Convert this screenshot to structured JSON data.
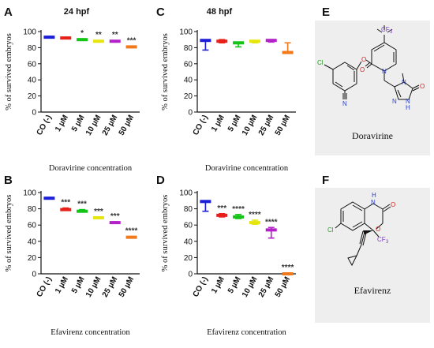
{
  "panels": [
    {
      "letter": "A",
      "title": "24 hpf"
    },
    {
      "letter": "B",
      "title": ""
    },
    {
      "letter": "C",
      "title": "48 hpf"
    },
    {
      "letter": "D",
      "title": ""
    },
    {
      "letter": "E",
      "title": ""
    },
    {
      "letter": "F",
      "title": ""
    }
  ],
  "structures": [
    {
      "panel": "E",
      "name": "Doravirine",
      "labels": [
        "CF",
        "3",
        "Cl",
        "O",
        "O",
        "N",
        "N",
        "N",
        "N",
        "N",
        "H",
        "O"
      ]
    },
    {
      "panel": "F",
      "name": "Efavirenz",
      "labels": [
        "H",
        "N",
        "O",
        "O",
        "Cl",
        "CF",
        "3"
      ]
    }
  ],
  "chart_data": [
    {
      "panel": "A",
      "type": "bar",
      "title": "24 hpf",
      "xlabel": "Doravirine concentration",
      "ylabel": "% of survived  embryos",
      "ylim": [
        0,
        100
      ],
      "yticks": [
        0,
        20,
        40,
        60,
        80,
        100
      ],
      "categories": [
        "CO (-)",
        "1 µM",
        "5 µM",
        "10 µM",
        "25 µM",
        "50 µM"
      ],
      "values": [
        93,
        92,
        90,
        88,
        88,
        81
      ],
      "errors": [
        [
          92,
          94
        ],
        [
          91,
          93
        ],
        [
          89,
          91
        ],
        [
          87,
          89
        ],
        [
          87,
          89
        ],
        [
          80,
          82
        ]
      ],
      "colors": [
        "#1c1fd8",
        "#e8201a",
        "#13c416",
        "#e6e60e",
        "#b421c9",
        "#f07a1c"
      ],
      "significance": [
        "",
        "",
        "*",
        "**",
        "**",
        "***"
      ],
      "grid": false
    },
    {
      "panel": "B",
      "type": "bar",
      "title": "",
      "xlabel": "Efavirenz concentration",
      "ylabel": "% of survived  embryos",
      "ylim": [
        0,
        100
      ],
      "yticks": [
        0,
        20,
        40,
        60,
        80,
        100
      ],
      "categories": [
        "CO (-)",
        "1 µM",
        "5 µM",
        "10 µM",
        "25 µM",
        "50 µM"
      ],
      "values": [
        93,
        79,
        77,
        69,
        63,
        45
      ],
      "errors": [
        [
          92,
          94
        ],
        [
          78,
          81
        ],
        [
          76,
          79
        ],
        [
          68,
          70
        ],
        [
          62,
          64
        ],
        [
          44,
          46
        ]
      ],
      "colors": [
        "#1c1fd8",
        "#e8201a",
        "#13c416",
        "#e6e60e",
        "#b421c9",
        "#f07a1c"
      ],
      "significance": [
        "",
        "***",
        "***",
        "***",
        "***",
        "****"
      ],
      "grid": false
    },
    {
      "panel": "C",
      "type": "bar",
      "title": "48 hpf",
      "xlabel": "Doravirine concentration",
      "ylabel": "% of survived  embryos",
      "ylim": [
        0,
        100
      ],
      "yticks": [
        0,
        20,
        40,
        60,
        80,
        100
      ],
      "categories": [
        "CO (-)",
        "1 µM",
        "5 µM",
        "10 µM",
        "25 µM",
        "50 µM"
      ],
      "values": [
        89,
        88,
        86,
        88,
        89,
        74
      ],
      "errors": [
        [
          77,
          89
        ],
        [
          86,
          90
        ],
        [
          81,
          87
        ],
        [
          86,
          89
        ],
        [
          87,
          90
        ],
        [
          74,
          86
        ]
      ],
      "colors": [
        "#1c1fd8",
        "#e8201a",
        "#13c416",
        "#e6e60e",
        "#b421c9",
        "#f07a1c"
      ],
      "significance": [
        "",
        "",
        "",
        "",
        "",
        ""
      ],
      "grid": false
    },
    {
      "panel": "D",
      "type": "bar",
      "title": "",
      "xlabel": "Efavirenz concentration",
      "ylabel": "% of survived  embryos",
      "ylim": [
        0,
        100
      ],
      "yticks": [
        0,
        20,
        40,
        60,
        80,
        100
      ],
      "categories": [
        "CO (-)",
        "1 µM",
        "5 µM",
        "10 µM",
        "25 µM",
        "50 µM"
      ],
      "values": [
        89,
        72,
        70,
        63,
        54,
        0
      ],
      "errors": [
        [
          77,
          89
        ],
        [
          70,
          74
        ],
        [
          68,
          73
        ],
        [
          61,
          66
        ],
        [
          44,
          57
        ],
        [
          0,
          1
        ]
      ],
      "colors": [
        "#1c1fd8",
        "#e8201a",
        "#13c416",
        "#e6e60e",
        "#b421c9",
        "#f07a1c"
      ],
      "significance": [
        "",
        "***",
        "****",
        "****",
        "****",
        "****"
      ],
      "grid": false
    }
  ]
}
